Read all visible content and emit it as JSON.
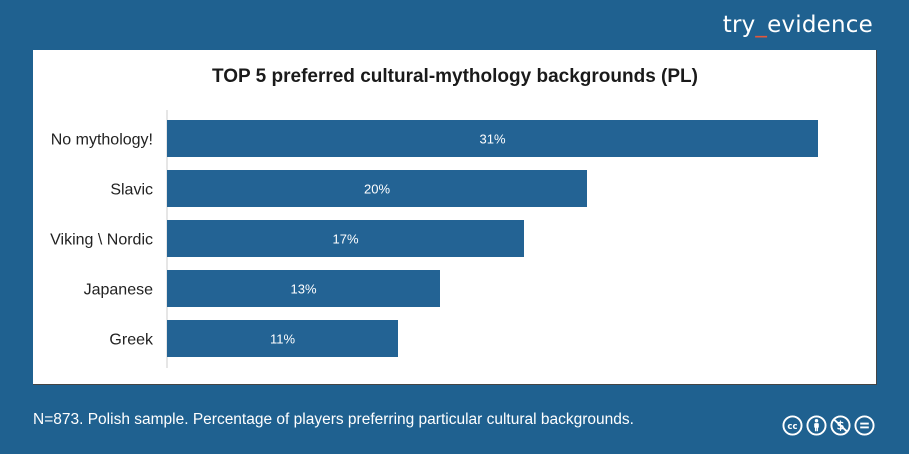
{
  "brand": {
    "text_before": "try",
    "text_underscore": "_",
    "text_after": "evidence",
    "accent_color": "#e2573b"
  },
  "footnote": "N=873. Polish sample. Percentage of players preferring particular cultural backgrounds.",
  "license": {
    "icons": [
      "cc-icon",
      "by-icon",
      "nc-icon",
      "nd-icon"
    ],
    "cc_text": "cc"
  },
  "colors": {
    "background": "#1f6190",
    "bar": "#236394",
    "bar_label": "#ffffff"
  },
  "chart_data": {
    "type": "bar",
    "orientation": "horizontal",
    "title": "TOP 5 preferred cultural-mythology backgrounds (PL)",
    "categories": [
      "No mythology!",
      "Slavic",
      "Viking \\ Nordic",
      "Japanese",
      "Greek"
    ],
    "values": [
      31,
      20,
      17,
      13,
      11
    ],
    "data_labels": [
      "31%",
      "20%",
      "17%",
      "13%",
      "11%"
    ],
    "unit": "%",
    "xlim": [
      0,
      32
    ],
    "grid": false,
    "legend": "none"
  }
}
